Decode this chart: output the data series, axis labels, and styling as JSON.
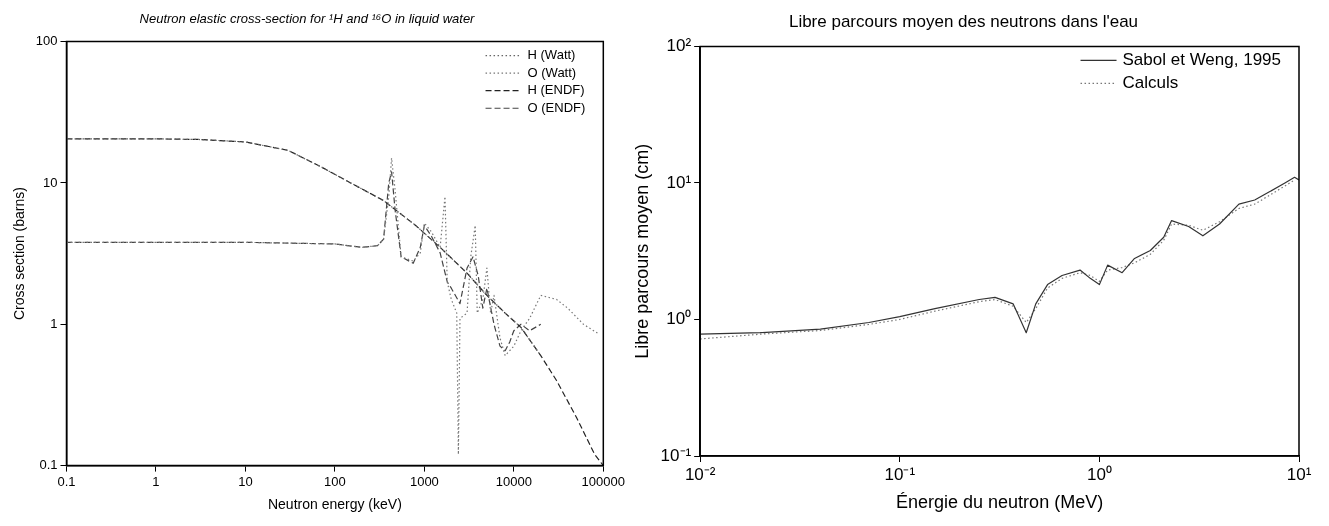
{
  "chart_data": [
    {
      "type": "line",
      "title": "Neutron elastic cross-section for ¹H and ¹⁶O in liquid water",
      "xlabel": "Neutron energy (keV)",
      "ylabel": "Cross section (barns)",
      "log": "xy",
      "grid": false,
      "legend": "top right",
      "xlim": [
        0.1,
        100000
      ],
      "ylim": [
        0.1,
        100
      ],
      "xticks": [
        0.1,
        1,
        10,
        100,
        1000,
        10000,
        100000
      ],
      "yticks": [
        0.1,
        1,
        10,
        100
      ],
      "series": [
        {
          "name": "H (Watt)",
          "color": "#666666",
          "line_style": "dotted",
          "x": [
            0.1,
            1,
            3,
            10,
            30,
            70,
            150,
            350,
            800,
            1500,
            3000,
            5000,
            8000,
            12000,
            20000
          ],
          "values": [
            20.5,
            20.5,
            20.3,
            19.5,
            17,
            13,
            10,
            7.5,
            5,
            3.5,
            2.3,
            1.6,
            1.2,
            0.95,
            0.6
          ]
        },
        {
          "name": "O (Watt)",
          "color": "#777777",
          "line_style": "dotted",
          "x": [
            0.1,
            1,
            10,
            100,
            200,
            300,
            350,
            400,
            430,
            470,
            550,
            750,
            900,
            1000,
            1200,
            1500,
            1700,
            1800,
            2000,
            2300,
            2400,
            2500,
            3000,
            3300,
            3700,
            3900,
            4500,
            5000,
            5500,
            6000,
            7000,
            8000,
            10000,
            12000,
            15000,
            20000,
            30000,
            40000,
            60000,
            90000
          ],
          "values": [
            3.8,
            3.8,
            3.8,
            3.7,
            3.5,
            3.6,
            4,
            8,
            15,
            9,
            3,
            2.8,
            3.2,
            5.2,
            4.5,
            3.5,
            8,
            2,
            1.5,
            1.2,
            0.12,
            1.1,
            1.2,
            3,
            5,
            1.2,
            1.5,
            2.5,
            1.2,
            1.6,
            0.8,
            0.6,
            0.7,
            0.9,
            1.1,
            1.6,
            1.5,
            1.3,
            1.0,
            0.85
          ]
        },
        {
          "name": "H (ENDF)",
          "color": "#222222",
          "line_style": "dashed",
          "x": [
            0.1,
            1,
            3,
            10,
            30,
            70,
            150,
            350,
            800,
            1500,
            3000,
            5000,
            8000,
            12000,
            20000,
            30000,
            50000,
            80000,
            100000
          ],
          "values": [
            20.5,
            20.5,
            20.3,
            19.5,
            17,
            13,
            10,
            7.5,
            5,
            3.5,
            2.3,
            1.6,
            1.2,
            0.95,
            0.6,
            0.4,
            0.22,
            0.12,
            0.1
          ]
        },
        {
          "name": "O (ENDF)",
          "color": "#444444",
          "line_style": "dashed",
          "x": [
            0.1,
            1,
            10,
            100,
            200,
            300,
            350,
            400,
            430,
            470,
            550,
            750,
            900,
            1000,
            1200,
            1500,
            1800,
            2000,
            2500,
            3000,
            3500,
            4000,
            4500,
            5000,
            6000,
            7000,
            8000,
            9000,
            10000,
            12000,
            15000,
            20000
          ],
          "values": [
            3.8,
            3.8,
            3.8,
            3.7,
            3.5,
            3.6,
            4,
            10,
            12,
            6.5,
            3,
            2.7,
            3.5,
            5,
            4.2,
            3.2,
            2,
            1.8,
            1.4,
            2.5,
            3,
            2.2,
            1.3,
            1.8,
            1,
            0.7,
            0.65,
            0.75,
            0.9,
            1.0,
            0.9,
            1.0
          ]
        }
      ]
    },
    {
      "type": "line",
      "title": "Libre parcours moyen des neutrons dans l'eau",
      "xlabel": "Énergie du neutron (MeV)",
      "ylabel": "Libre parcours moyen (cm)",
      "log": "xy",
      "grid": false,
      "legend": "top right",
      "xlim": [
        0.01,
        10
      ],
      "ylim": [
        0.1,
        100
      ],
      "xticks": [
        {
          "value": 0.01,
          "label": "10⁻²"
        },
        {
          "value": 0.1,
          "label": "10⁻¹"
        },
        {
          "value": 1,
          "label": "10⁰"
        },
        {
          "value": 10,
          "label": "10¹"
        }
      ],
      "yticks": [
        {
          "value": 0.1,
          "label": "10⁻¹"
        },
        {
          "value": 1,
          "label": "10⁰"
        },
        {
          "value": 10,
          "label": "10¹"
        },
        {
          "value": 100,
          "label": "10²"
        }
      ],
      "series": [
        {
          "name": "Sabol et Weng, 1995",
          "color": "#333333",
          "line_style": "solid",
          "x": [
            0.01,
            0.02,
            0.04,
            0.07,
            0.1,
            0.15,
            0.25,
            0.3,
            0.37,
            0.43,
            0.48,
            0.55,
            0.65,
            0.8,
            0.9,
            1.0,
            1.1,
            1.3,
            1.5,
            1.8,
            2.1,
            2.3,
            2.8,
            3.3,
            4,
            5,
            6,
            7,
            8.5,
            9.5,
            10
          ],
          "values": [
            0.78,
            0.8,
            0.85,
            0.95,
            1.05,
            1.2,
            1.4,
            1.45,
            1.3,
            0.8,
            1.3,
            1.8,
            2.1,
            2.3,
            2.0,
            1.8,
            2.5,
            2.2,
            2.8,
            3.2,
            4,
            5.3,
            4.8,
            4.1,
            5,
            7,
            7.5,
            8.5,
            10,
            11,
            10.5
          ]
        },
        {
          "name": "Calculs",
          "color": "#777777",
          "line_style": "dotted",
          "x": [
            0.01,
            0.02,
            0.04,
            0.07,
            0.1,
            0.15,
            0.25,
            0.3,
            0.37,
            0.43,
            0.48,
            0.55,
            0.65,
            0.8,
            0.9,
            1.0,
            1.1,
            1.3,
            1.5,
            1.8,
            2.1,
            2.3,
            2.8,
            3.3,
            4,
            5,
            6,
            7,
            8.5,
            9.5
          ],
          "values": [
            0.72,
            0.78,
            0.83,
            0.92,
            1.0,
            1.15,
            1.35,
            1.4,
            1.25,
            0.95,
            1.2,
            1.7,
            2.0,
            2.2,
            2.1,
            1.9,
            2.3,
            2.4,
            2.6,
            3.0,
            3.8,
            5.0,
            4.9,
            4.5,
            5.2,
            6.5,
            7,
            8,
            9.5,
            10.5
          ]
        }
      ]
    }
  ]
}
